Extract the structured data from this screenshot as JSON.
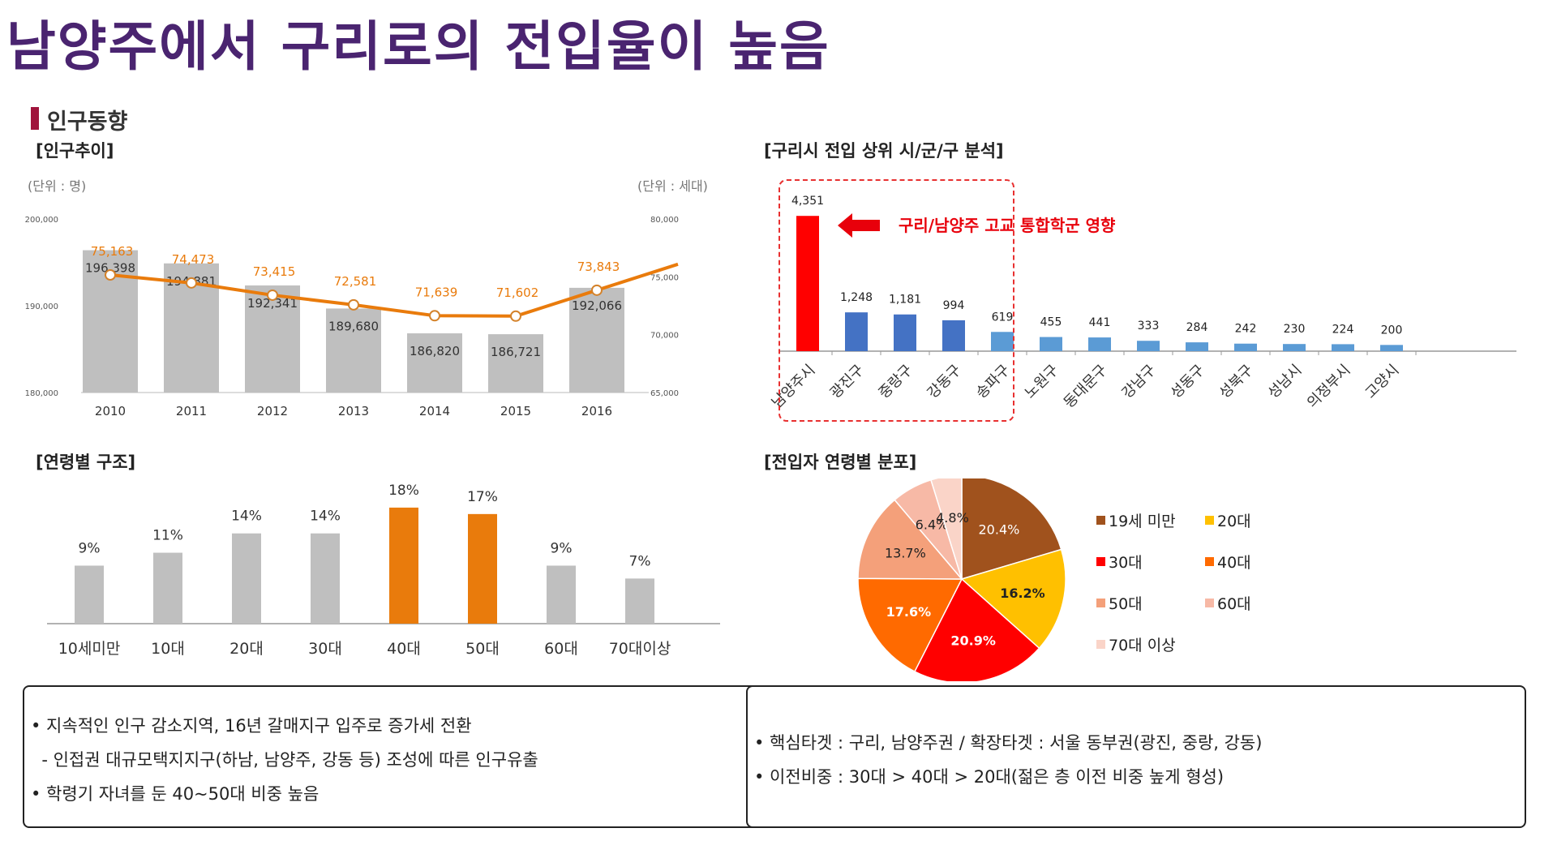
{
  "header": {
    "title": "남양주에서 구리로의 전입율이 높음",
    "section": "인구동향"
  },
  "colors": {
    "title": "#4a2470",
    "bar_gray": "#bfbfbf",
    "line_orange": "#e97b0c",
    "highlight_red": "#ff0000",
    "bar_blue_dark": "#4472c4",
    "bar_blue_light": "#5b9bd5"
  },
  "population": {
    "title": "[인구추이]",
    "unit_left": "(단위 : 명)",
    "unit_right": "(단위 : 세대)",
    "chart_data": {
      "type": "bar",
      "categories": [
        "2010",
        "2011",
        "2012",
        "2013",
        "2014",
        "2015",
        "2016"
      ],
      "series": [
        {
          "values": [
            196398,
            194881,
            192341,
            189680,
            186820,
            186721,
            192066
          ],
          "value_labels": [
            "196,398",
            "194,881",
            "192,341",
            "189,680",
            "186,820",
            "186,721",
            "192,066"
          ]
        },
        {
          "type": "line",
          "values": [
            75163,
            74473,
            73415,
            72581,
            71639,
            71602,
            73843
          ],
          "value_labels": [
            "75,163",
            "74,473",
            "73,415",
            "72,581",
            "71,639",
            "71,602",
            "73,843"
          ]
        }
      ],
      "y_ticks": [
        "200,000",
        "190,000",
        "180,000"
      ],
      "y2_ticks": [
        "80,000",
        "75,000",
        "70,000",
        "65,000"
      ],
      "ylim": [
        180000,
        200000
      ],
      "y2lim": [
        65000,
        80000
      ]
    }
  },
  "inflow": {
    "title": "[구리시 전입 상위 시/군/구 분석]",
    "annotation": "구리/남양주 고교 통합학군  영향",
    "chart_data": {
      "type": "bar",
      "categories": [
        "남양주시",
        "광진구",
        "중랑구",
        "강동구",
        "송파구",
        "노원구",
        "동대문구",
        "강남구",
        "성동구",
        "성북구",
        "성남시",
        "의정부시",
        "고양시"
      ],
      "values": [
        4351,
        1248,
        1181,
        994,
        619,
        455,
        441,
        333,
        284,
        242,
        230,
        224,
        200
      ],
      "value_labels": [
        "4,351",
        "1,248",
        "1,181",
        "994",
        "619",
        "455",
        "441",
        "333",
        "284",
        "242",
        "230",
        "224",
        "200"
      ],
      "ylim": [
        0,
        4800
      ]
    }
  },
  "age_structure": {
    "title": "[연령별 구조]",
    "chart_data": {
      "type": "bar",
      "categories": [
        "10세미만",
        "10대",
        "20대",
        "30대",
        "40대",
        "50대",
        "60대",
        "70대이상"
      ],
      "values": [
        9,
        11,
        14,
        14,
        18,
        17,
        9,
        7
      ],
      "value_labels": [
        "9%",
        "11%",
        "14%",
        "14%",
        "18%",
        "17%",
        "9%",
        "7%"
      ],
      "ylim": [
        0,
        20
      ]
    }
  },
  "inflow_age": {
    "title": "[전입자 연령별 분포]",
    "chart_data": {
      "type": "pie",
      "labels": [
        "19세 미만",
        "20대",
        "30대",
        "40대",
        "50대",
        "60대",
        "70대 이상"
      ],
      "values": [
        20.4,
        16.2,
        20.9,
        17.6,
        13.7,
        6.4,
        4.8
      ],
      "value_labels": [
        "20.4%",
        "16.2%",
        "20.9%",
        "17.6%",
        "13.7%",
        "6.4%",
        "4.8%"
      ],
      "colors": [
        "#a0521d",
        "#ffc000",
        "#ff0000",
        "#ff6a00",
        "#f4a07a",
        "#f7b9a6",
        "#fad4c8"
      ]
    }
  },
  "notes_left": {
    "lines": [
      "• 지속적인 인구 감소지역, 16년 갈매지구 입주로 증가세 전환",
      "  - 인접권 대규모택지지구(하남, 남양주, 강동 등) 조성에 따른 인구유출",
      "• 학령기 자녀를 둔 40~50대 비중 높음"
    ]
  },
  "notes_right": {
    "lines": [
      "• 핵심타겟 : 구리, 남양주권 / 확장타겟 : 서울 동부권(광진, 중랑, 강동)",
      "• 이전비중 : 30대 > 40대 > 20대(젊은 층 이전 비중 높게 형성)"
    ]
  }
}
